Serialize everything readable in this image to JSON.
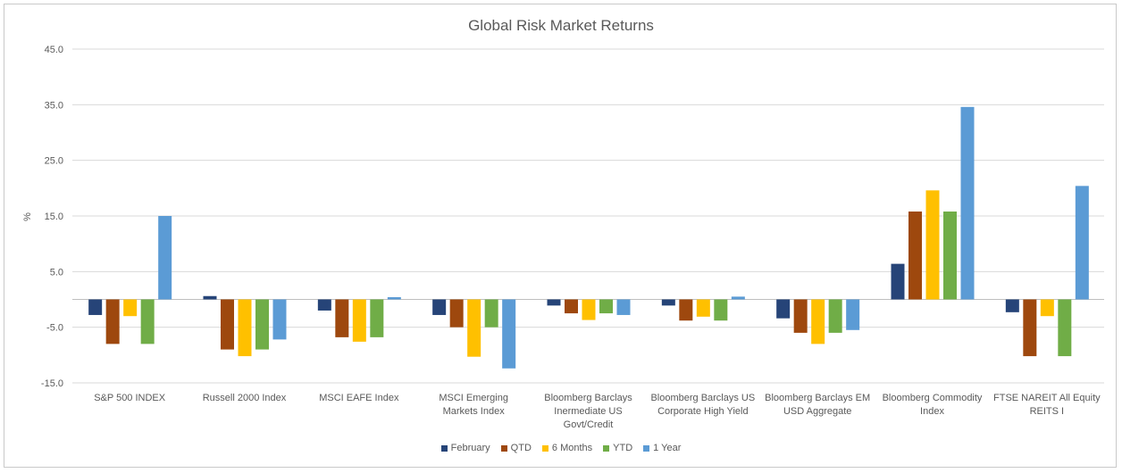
{
  "chart_data": {
    "type": "bar",
    "title": "Global Risk Market Returns",
    "xlabel": "",
    "ylabel": "%",
    "ylim": [
      -15,
      45
    ],
    "yticks": [
      "45.0",
      "35.0",
      "25.0",
      "15.0",
      "5.0",
      "-5.0",
      "-15.0"
    ],
    "ytick_values": [
      45,
      35,
      25,
      15,
      5,
      -5,
      -15
    ],
    "grid": true,
    "legend_position": "bottom",
    "categories": [
      [
        "S&P 500 INDEX"
      ],
      [
        "Russell 2000 Index"
      ],
      [
        "MSCI EAFE Index"
      ],
      [
        "MSCI Emerging",
        "Markets Index"
      ],
      [
        "Bloomberg Barclays",
        "Inermediate US",
        "Govt/Credit"
      ],
      [
        "Bloomberg Barclays US",
        "Corporate High Yield"
      ],
      [
        "Bloomberg Barclays EM",
        "USD Aggregate"
      ],
      [
        "Bloomberg Commodity",
        "Index"
      ],
      [
        "FTSE NAREIT All Equity",
        "REITS I"
      ]
    ],
    "series": [
      {
        "name": "February",
        "color": "#264478",
        "values": [
          -2.8,
          0.6,
          -2.0,
          -2.8,
          -1.1,
          -1.1,
          -3.4,
          6.4,
          -2.3
        ]
      },
      {
        "name": "QTD",
        "color": "#9e480e",
        "values": [
          -8.0,
          -9.0,
          -6.8,
          -5.0,
          -2.5,
          -3.8,
          -6.0,
          15.8,
          -10.2
        ]
      },
      {
        "name": "6 Months",
        "color": "#ffc000",
        "values": [
          -3.0,
          -10.2,
          -7.6,
          -10.3,
          -3.7,
          -3.1,
          -8.0,
          19.6,
          -3.0
        ]
      },
      {
        "name": "YTD",
        "color": "#70ad47",
        "values": [
          -8.0,
          -9.0,
          -6.8,
          -5.0,
          -2.5,
          -3.8,
          -6.0,
          15.8,
          -10.2
        ]
      },
      {
        "name": "1 Year",
        "color": "#5b9bd5",
        "values": [
          15.0,
          -7.2,
          0.4,
          -12.4,
          -2.8,
          0.5,
          -5.5,
          34.6,
          20.4
        ]
      }
    ]
  }
}
